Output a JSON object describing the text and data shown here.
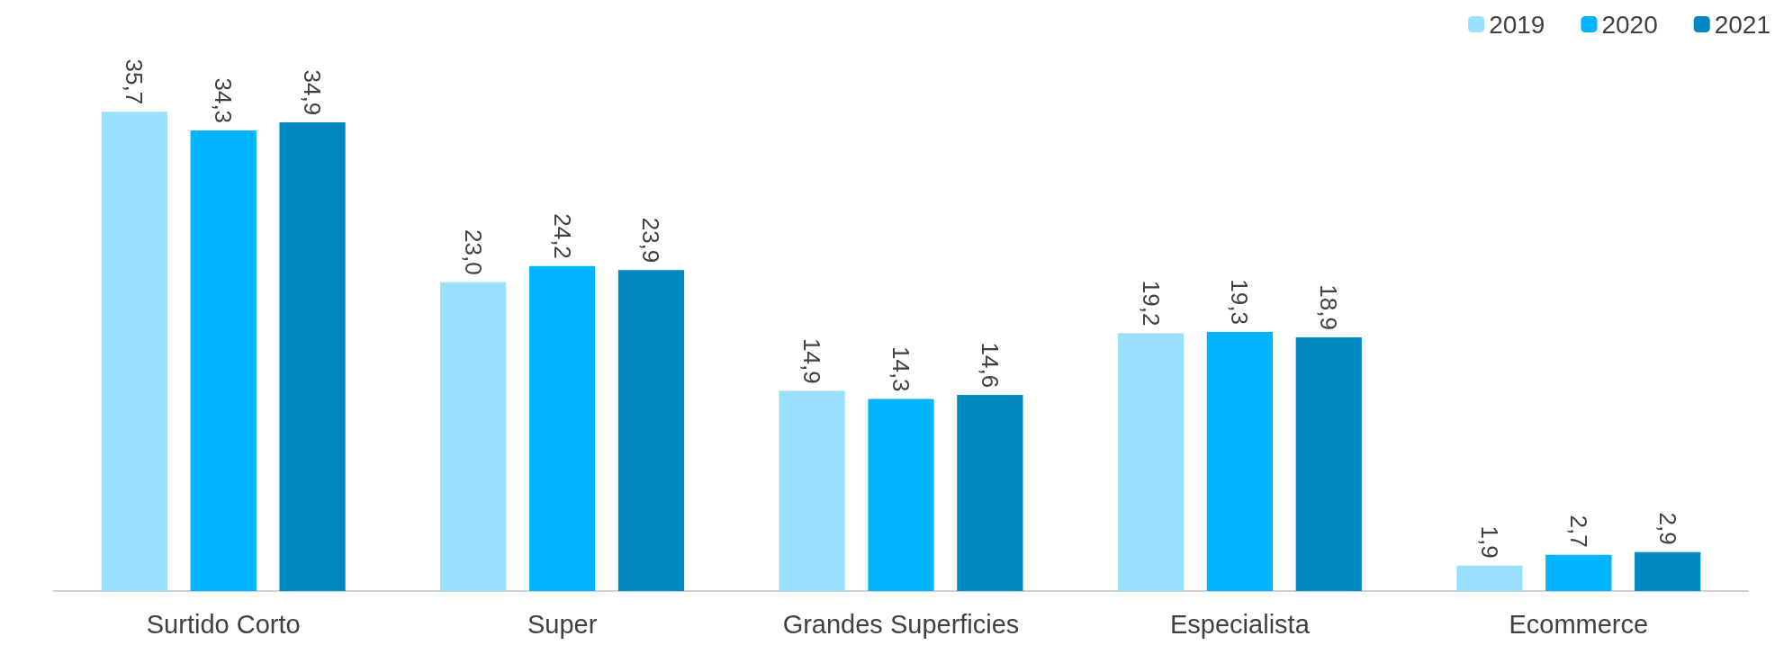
{
  "chart_data": {
    "type": "bar",
    "categories": [
      "Surtido Corto",
      "Super",
      "Grandes Superficies",
      "Especialista",
      "Ecommerce"
    ],
    "series": [
      {
        "name": "2019",
        "color": "#99e0ff",
        "values": [
          35.7,
          23.0,
          14.9,
          19.2,
          1.9
        ],
        "value_labels": [
          "35,7",
          "23,0",
          "14,9",
          "19,2",
          "1,9"
        ]
      },
      {
        "name": "2020",
        "color": "#00b4ff",
        "values": [
          34.3,
          24.2,
          14.3,
          19.3,
          2.7
        ],
        "value_labels": [
          "34,3",
          "24,2",
          "14,3",
          "19,3",
          "2,7"
        ]
      },
      {
        "name": "2021",
        "color": "#0088c0",
        "values": [
          34.9,
          23.9,
          14.6,
          18.9,
          2.9
        ],
        "value_labels": [
          "34,9",
          "23,9",
          "14,6",
          "18,9",
          "2,9"
        ]
      }
    ],
    "legend": "top right",
    "grid": false
  }
}
